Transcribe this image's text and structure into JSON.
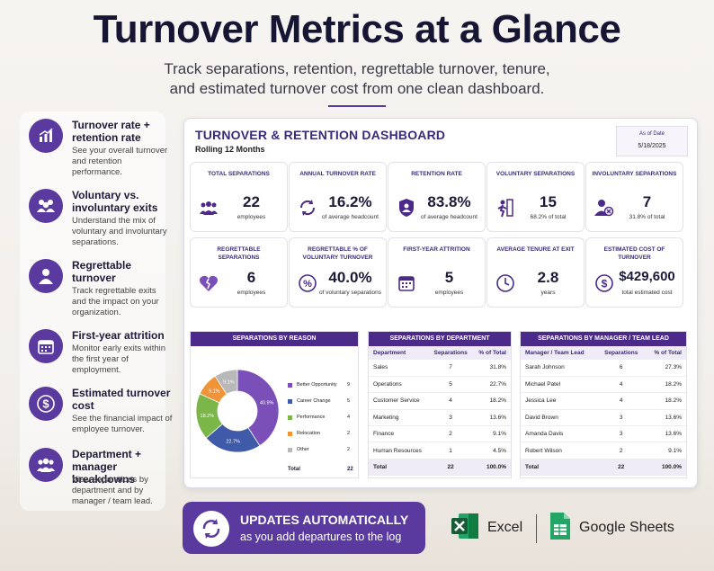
{
  "hero": {
    "title": "Turnover Metrics at a Glance",
    "subtitle_line1": "Track separations, retention, regrettable turnover, tenure,",
    "subtitle_line2": "and estimated turnover cost from one clean dashboard."
  },
  "features": [
    {
      "icon": "bar-chart-icon",
      "title": "Turnover rate + retention rate",
      "desc": "See your overall turnover and retention performance."
    },
    {
      "icon": "people-group-icon",
      "title": "Voluntary vs. involuntary exits",
      "desc": "Understand the mix of voluntary and involuntary separations."
    },
    {
      "icon": "person-icon",
      "title": "Regrettable turnover",
      "desc": "Track regrettable exits and the impact on your organization."
    },
    {
      "icon": "calendar-icon",
      "title": "First-year attrition",
      "desc": "Monitor early exits within the first year of employment."
    },
    {
      "icon": "dollar-icon",
      "title": "Estimated turnover cost",
      "desc": "See the financial impact of employee turnover."
    },
    {
      "icon": "team-icon",
      "title": "Department + manager breakdowns",
      "desc": "View separations by department and by manager / team lead."
    }
  ],
  "dashboard": {
    "title": "TURNOVER & RETENTION DASHBOARD",
    "subtitle": "Rolling 12 Months",
    "as_of_label": "As of Date",
    "as_of_value": "5/18/2025",
    "kpis": [
      {
        "label": "TOTAL SEPARATIONS",
        "value": "22",
        "unit": "employees",
        "icon": "people-icon"
      },
      {
        "label": "ANNUAL TURNOVER RATE",
        "value": "16.2%",
        "unit": "of average headcount",
        "icon": "refresh-icon"
      },
      {
        "label": "RETENTION RATE",
        "value": "83.8%",
        "unit": "of average headcount",
        "icon": "shield-person-icon"
      },
      {
        "label": "VOLUNTARY SEPARATIONS",
        "value": "15",
        "unit": "68.2% of total",
        "icon": "person-leaving-icon"
      },
      {
        "label": "INVOLUNTARY SEPARATIONS",
        "value": "7",
        "unit": "31.8% of total",
        "icon": "person-remove-icon"
      },
      {
        "label": "REGRETTABLE SEPARATIONS",
        "value": "6",
        "unit": "employees",
        "icon": "broken-heart-icon"
      },
      {
        "label": "REGRETTABLE % OF VOLUNTARY TURNOVER",
        "value": "40.0%",
        "unit": "of voluntary separations",
        "icon": "percent-icon"
      },
      {
        "label": "FIRST-YEAR ATTRITION",
        "value": "5",
        "unit": "employees",
        "icon": "calendar-icon"
      },
      {
        "label": "AVERAGE TENURE AT EXIT",
        "value": "2.8",
        "unit": "years",
        "icon": "clock-icon"
      },
      {
        "label": "ESTIMATED COST OF TURNOVER",
        "value": "$429,600",
        "unit": "total estimated cost",
        "icon": "dollar-icon"
      }
    ],
    "reason": {
      "title": "SEPARATIONS BY REASON",
      "total_label": "Total",
      "total_value": "22"
    },
    "department": {
      "title": "SEPARATIONS BY DEPARTMENT",
      "headers": [
        "Department",
        "Separations",
        "% of Total"
      ],
      "rows": [
        [
          "Sales",
          "7",
          "31.8%"
        ],
        [
          "Operations",
          "5",
          "22.7%"
        ],
        [
          "Customer Service",
          "4",
          "18.2%"
        ],
        [
          "Marketing",
          "3",
          "13.6%"
        ],
        [
          "Finance",
          "2",
          "9.1%"
        ],
        [
          "Human Resources",
          "1",
          "4.5%"
        ]
      ],
      "total": [
        "Total",
        "22",
        "100.0%"
      ]
    },
    "manager": {
      "title": "SEPARATIONS BY MANAGER / TEAM LEAD",
      "headers": [
        "Manager / Team Lead",
        "Separations",
        "% of Total"
      ],
      "rows": [
        [
          "Sarah Johnson",
          "6",
          "27.3%"
        ],
        [
          "Michael Patel",
          "4",
          "18.2%"
        ],
        [
          "Jessica Lee",
          "4",
          "18.2%"
        ],
        [
          "David Brown",
          "3",
          "13.6%"
        ],
        [
          "Amanda Davis",
          "3",
          "13.6%"
        ],
        [
          "Robert Wilson",
          "2",
          "9.1%"
        ]
      ],
      "total": [
        "Total",
        "22",
        "100.0%"
      ]
    }
  },
  "chart_data": {
    "type": "pie",
    "categories": [
      "Better Opportunity",
      "Career Change",
      "Performance",
      "Relocation",
      "Other"
    ],
    "values": [
      9,
      5,
      4,
      2,
      2
    ],
    "labels": [
      "40.9%",
      "22.7%",
      "18.2%",
      "9.1%",
      "9.1%"
    ],
    "colors": [
      "#7b4fb8",
      "#3f5aa8",
      "#7ab648",
      "#f0943a",
      "#b8b8b8"
    ],
    "title": "SEPARATIONS BY REASON",
    "legend": "right"
  },
  "cta": {
    "line1": "UPDATES AUTOMATICALLY",
    "line2": "as you add departures to the log"
  },
  "apps": {
    "excel": "Excel",
    "sheets": "Google Sheets"
  }
}
